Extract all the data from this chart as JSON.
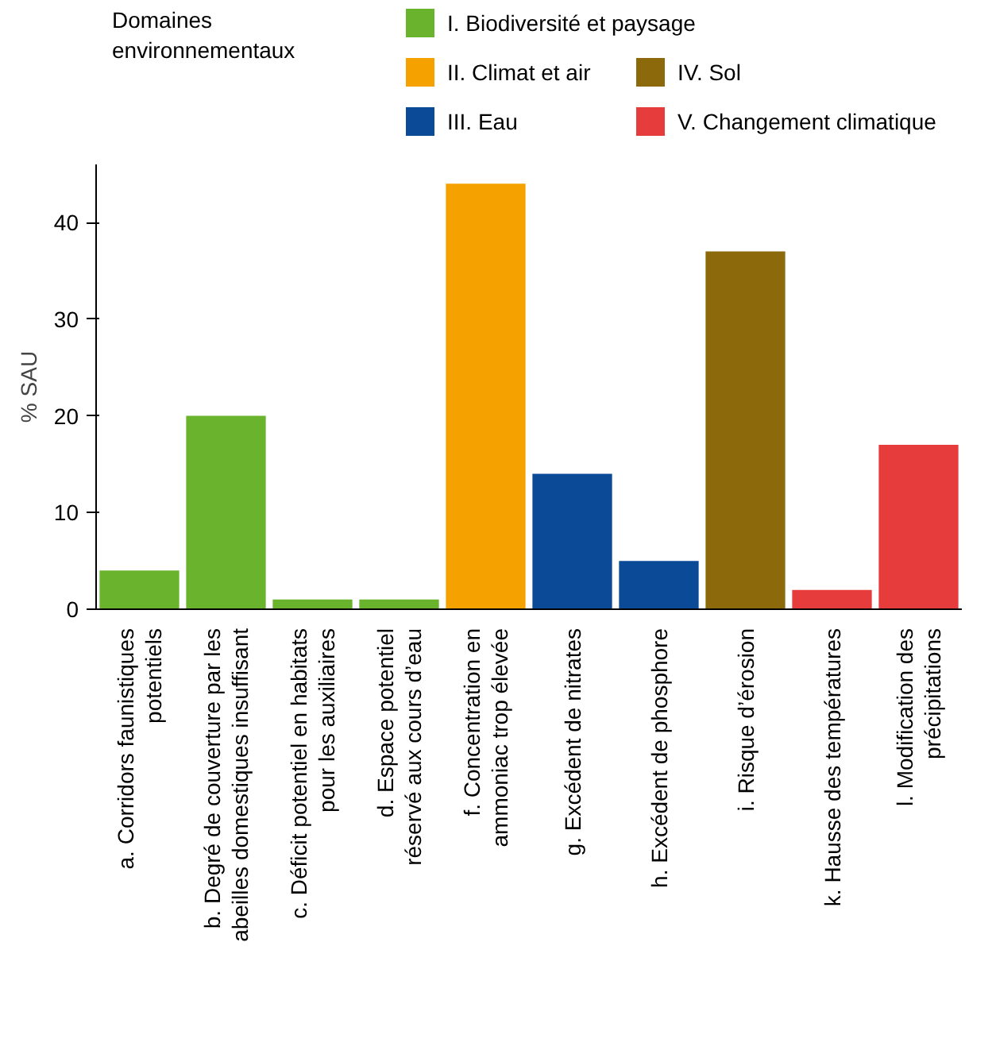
{
  "chart_data": {
    "type": "bar",
    "ylabel": "% SAU",
    "legend_title": "Domaines environnementaux",
    "legend": "top",
    "categories": [
      "a. Corridors faunistiques\npotentiels",
      "b. Degré de couverture par les\nabeilles domestiques insuffisant",
      "c. Déficit potentiel en habitats\npour les auxiliaires",
      "d. Espace potentiel\nréservé aux cours d’eau",
      "f. Concentration en\nammoniac trop élevée",
      "g. Excédent de nitrates",
      "h. Excédent de phosphore",
      "i. Risque d’érosion",
      "k. Hausse des températures",
      "l. Modification des\nprécipitations"
    ],
    "series": [
      {
        "name": "I. Biodiversité et paysage",
        "color": "#6ab42d",
        "values": [
          4,
          20,
          1,
          1,
          null,
          null,
          null,
          null,
          null,
          null
        ]
      },
      {
        "name": "II. Climat et air",
        "color": "#f5a200",
        "values": [
          null,
          null,
          null,
          null,
          44,
          null,
          null,
          null,
          null,
          null
        ]
      },
      {
        "name": "III. Eau",
        "color": "#0a4a97",
        "values": [
          null,
          null,
          null,
          null,
          null,
          14,
          5,
          null,
          null,
          null
        ]
      },
      {
        "name": "IV. Sol",
        "color": "#8c6a0c",
        "values": [
          null,
          null,
          null,
          null,
          null,
          null,
          null,
          37,
          null,
          null
        ]
      },
      {
        "name": "V. Changement climatique",
        "color": "#e63c3c",
        "values": [
          null,
          null,
          null,
          null,
          null,
          null,
          null,
          null,
          2,
          17
        ]
      }
    ],
    "ylim": [
      0,
      46
    ],
    "yticks": [
      0,
      10,
      20,
      30,
      40
    ],
    "grid": false
  }
}
